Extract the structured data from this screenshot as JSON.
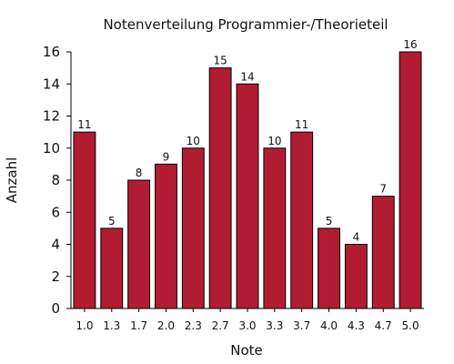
{
  "chart_data": {
    "type": "bar",
    "title": "Notenverteilung Programmier-/Theorieteil",
    "xlabel": "Note",
    "ylabel": "Anzahl",
    "categories": [
      "1.0",
      "1.3",
      "1.7",
      "2.0",
      "2.3",
      "2.7",
      "3.0",
      "3.3",
      "3.7",
      "4.0",
      "4.3",
      "4.7",
      "5.0"
    ],
    "values": [
      11,
      5,
      8,
      9,
      10,
      15,
      14,
      10,
      11,
      5,
      4,
      7,
      16
    ],
    "ylim": [
      0,
      16
    ],
    "yticks": [
      0,
      2,
      4,
      6,
      8,
      10,
      12,
      14,
      16
    ],
    "grid": false,
    "colors": {
      "bar_fill": "#b21c33",
      "bar_stroke": "#000000",
      "axis": "#000000"
    }
  }
}
